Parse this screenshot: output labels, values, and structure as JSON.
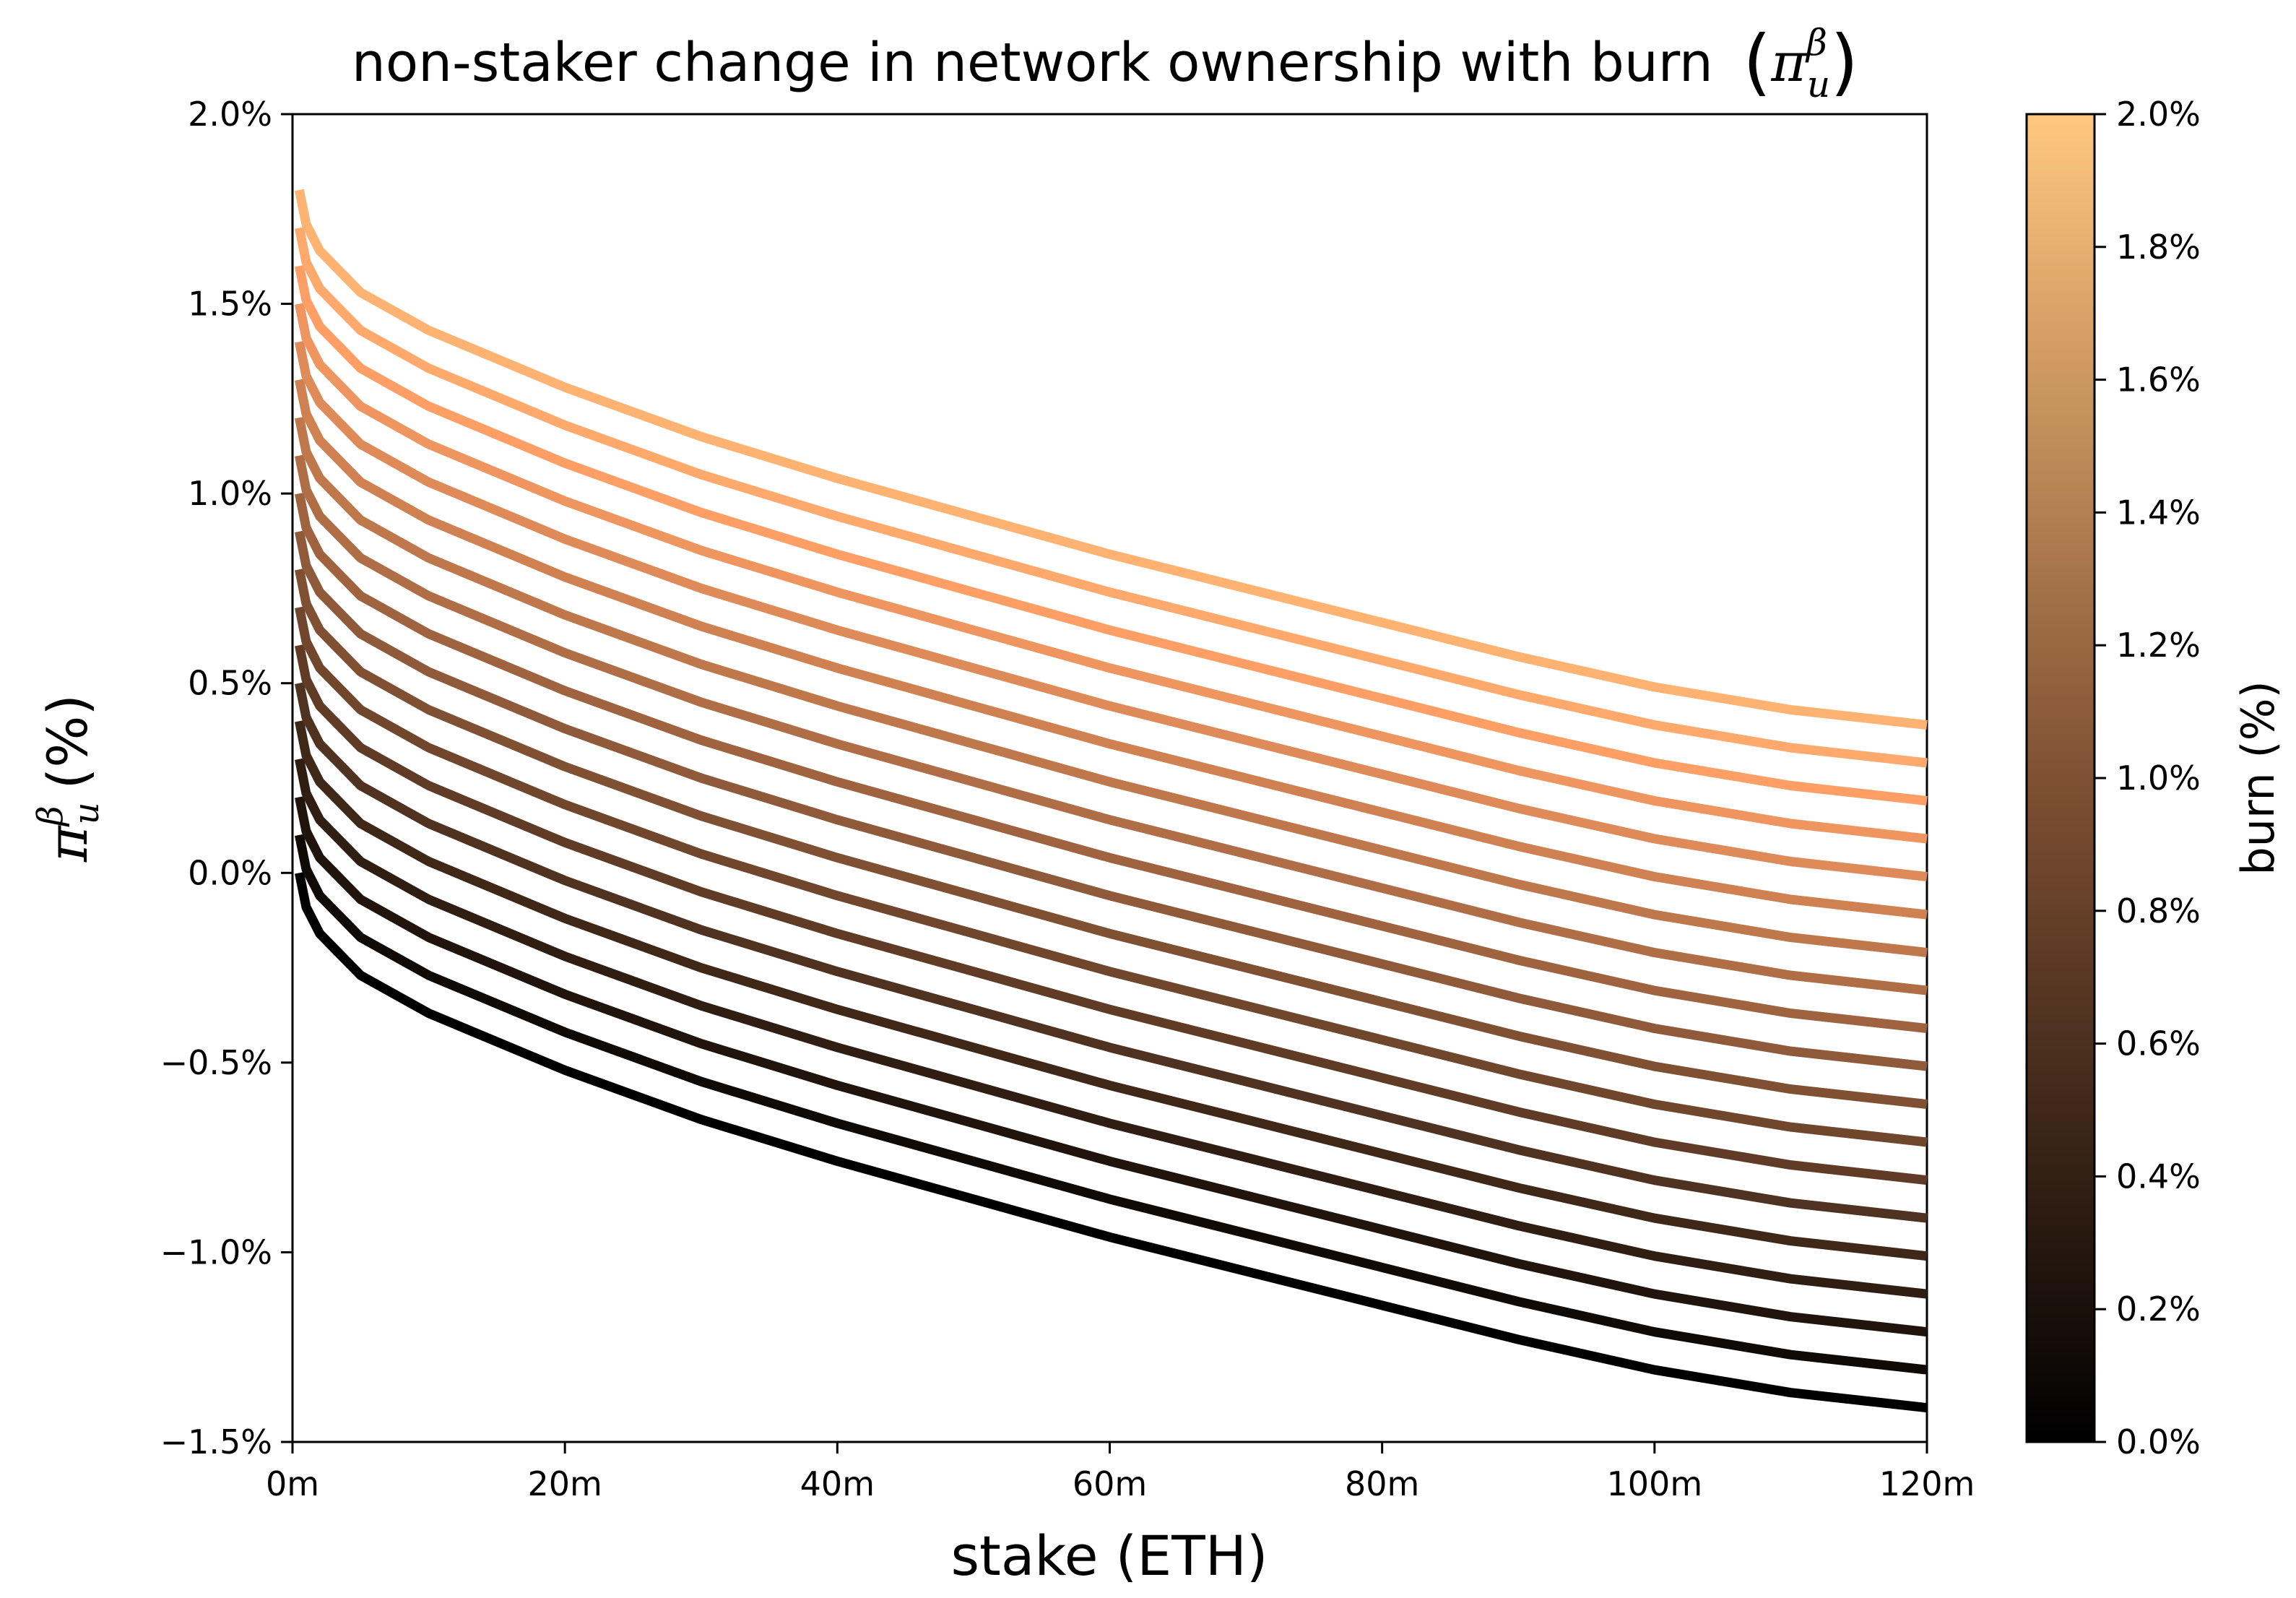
{
  "chart_data": {
    "type": "line",
    "title": {
      "main": "non-staker change in network ownership with burn",
      "symbol": "π",
      "sup": "β",
      "sub": "u"
    },
    "xlabel": "stake (ETH)",
    "ylabel": {
      "symbol": "π",
      "sup": "β",
      "sub": "u",
      "unit": "(%)"
    },
    "xlim": [
      0,
      120
    ],
    "ylim": [
      -1.5,
      2.0
    ],
    "x_ticks": [
      0,
      20,
      40,
      60,
      80,
      100,
      120
    ],
    "x_tick_labels": [
      "0m",
      "20m",
      "40m",
      "60m",
      "80m",
      "100m",
      "120m"
    ],
    "y_ticks": [
      -1.5,
      -1.0,
      -0.5,
      0.0,
      0.5,
      1.0,
      1.5,
      2.0
    ],
    "y_tick_labels": [
      "−1.5%",
      "−1.0%",
      "−0.5%",
      "0.0%",
      "0.5%",
      "1.0%",
      "1.5%",
      "2.0%"
    ],
    "x": [
      0.5,
      1,
      2,
      5,
      10,
      20,
      30,
      40,
      50,
      60,
      70,
      80,
      90,
      100,
      110,
      120
    ],
    "base_curve": [
      0.0,
      -0.09,
      -0.16,
      -0.27,
      -0.37,
      -0.52,
      -0.65,
      -0.76,
      -0.86,
      -0.96,
      -1.05,
      -1.14,
      -1.23,
      -1.31,
      -1.37,
      -1.41
    ],
    "series_offset_step": 0.1,
    "burn_levels": [
      0.0,
      0.1,
      0.2,
      0.3,
      0.4,
      0.5,
      0.6,
      0.7,
      0.8,
      0.9,
      1.0,
      1.1,
      1.2,
      1.3,
      1.4,
      1.5,
      1.6,
      1.7,
      1.8
    ],
    "grid": false,
    "colormap": "copper",
    "colormap_stops": [
      "#000000",
      "#7f5033",
      "#ffc77f"
    ],
    "colorbar": {
      "label": "burn (%)",
      "range": [
        0.0,
        2.0
      ],
      "ticks": [
        0.0,
        0.2,
        0.4,
        0.6,
        0.8,
        1.0,
        1.2,
        1.4,
        1.6,
        1.8,
        2.0
      ],
      "tick_labels": [
        "0.0%",
        "0.2%",
        "0.4%",
        "0.6%",
        "0.8%",
        "1.0%",
        "1.2%",
        "1.4%",
        "1.6%",
        "1.8%",
        "2.0%"
      ]
    }
  }
}
